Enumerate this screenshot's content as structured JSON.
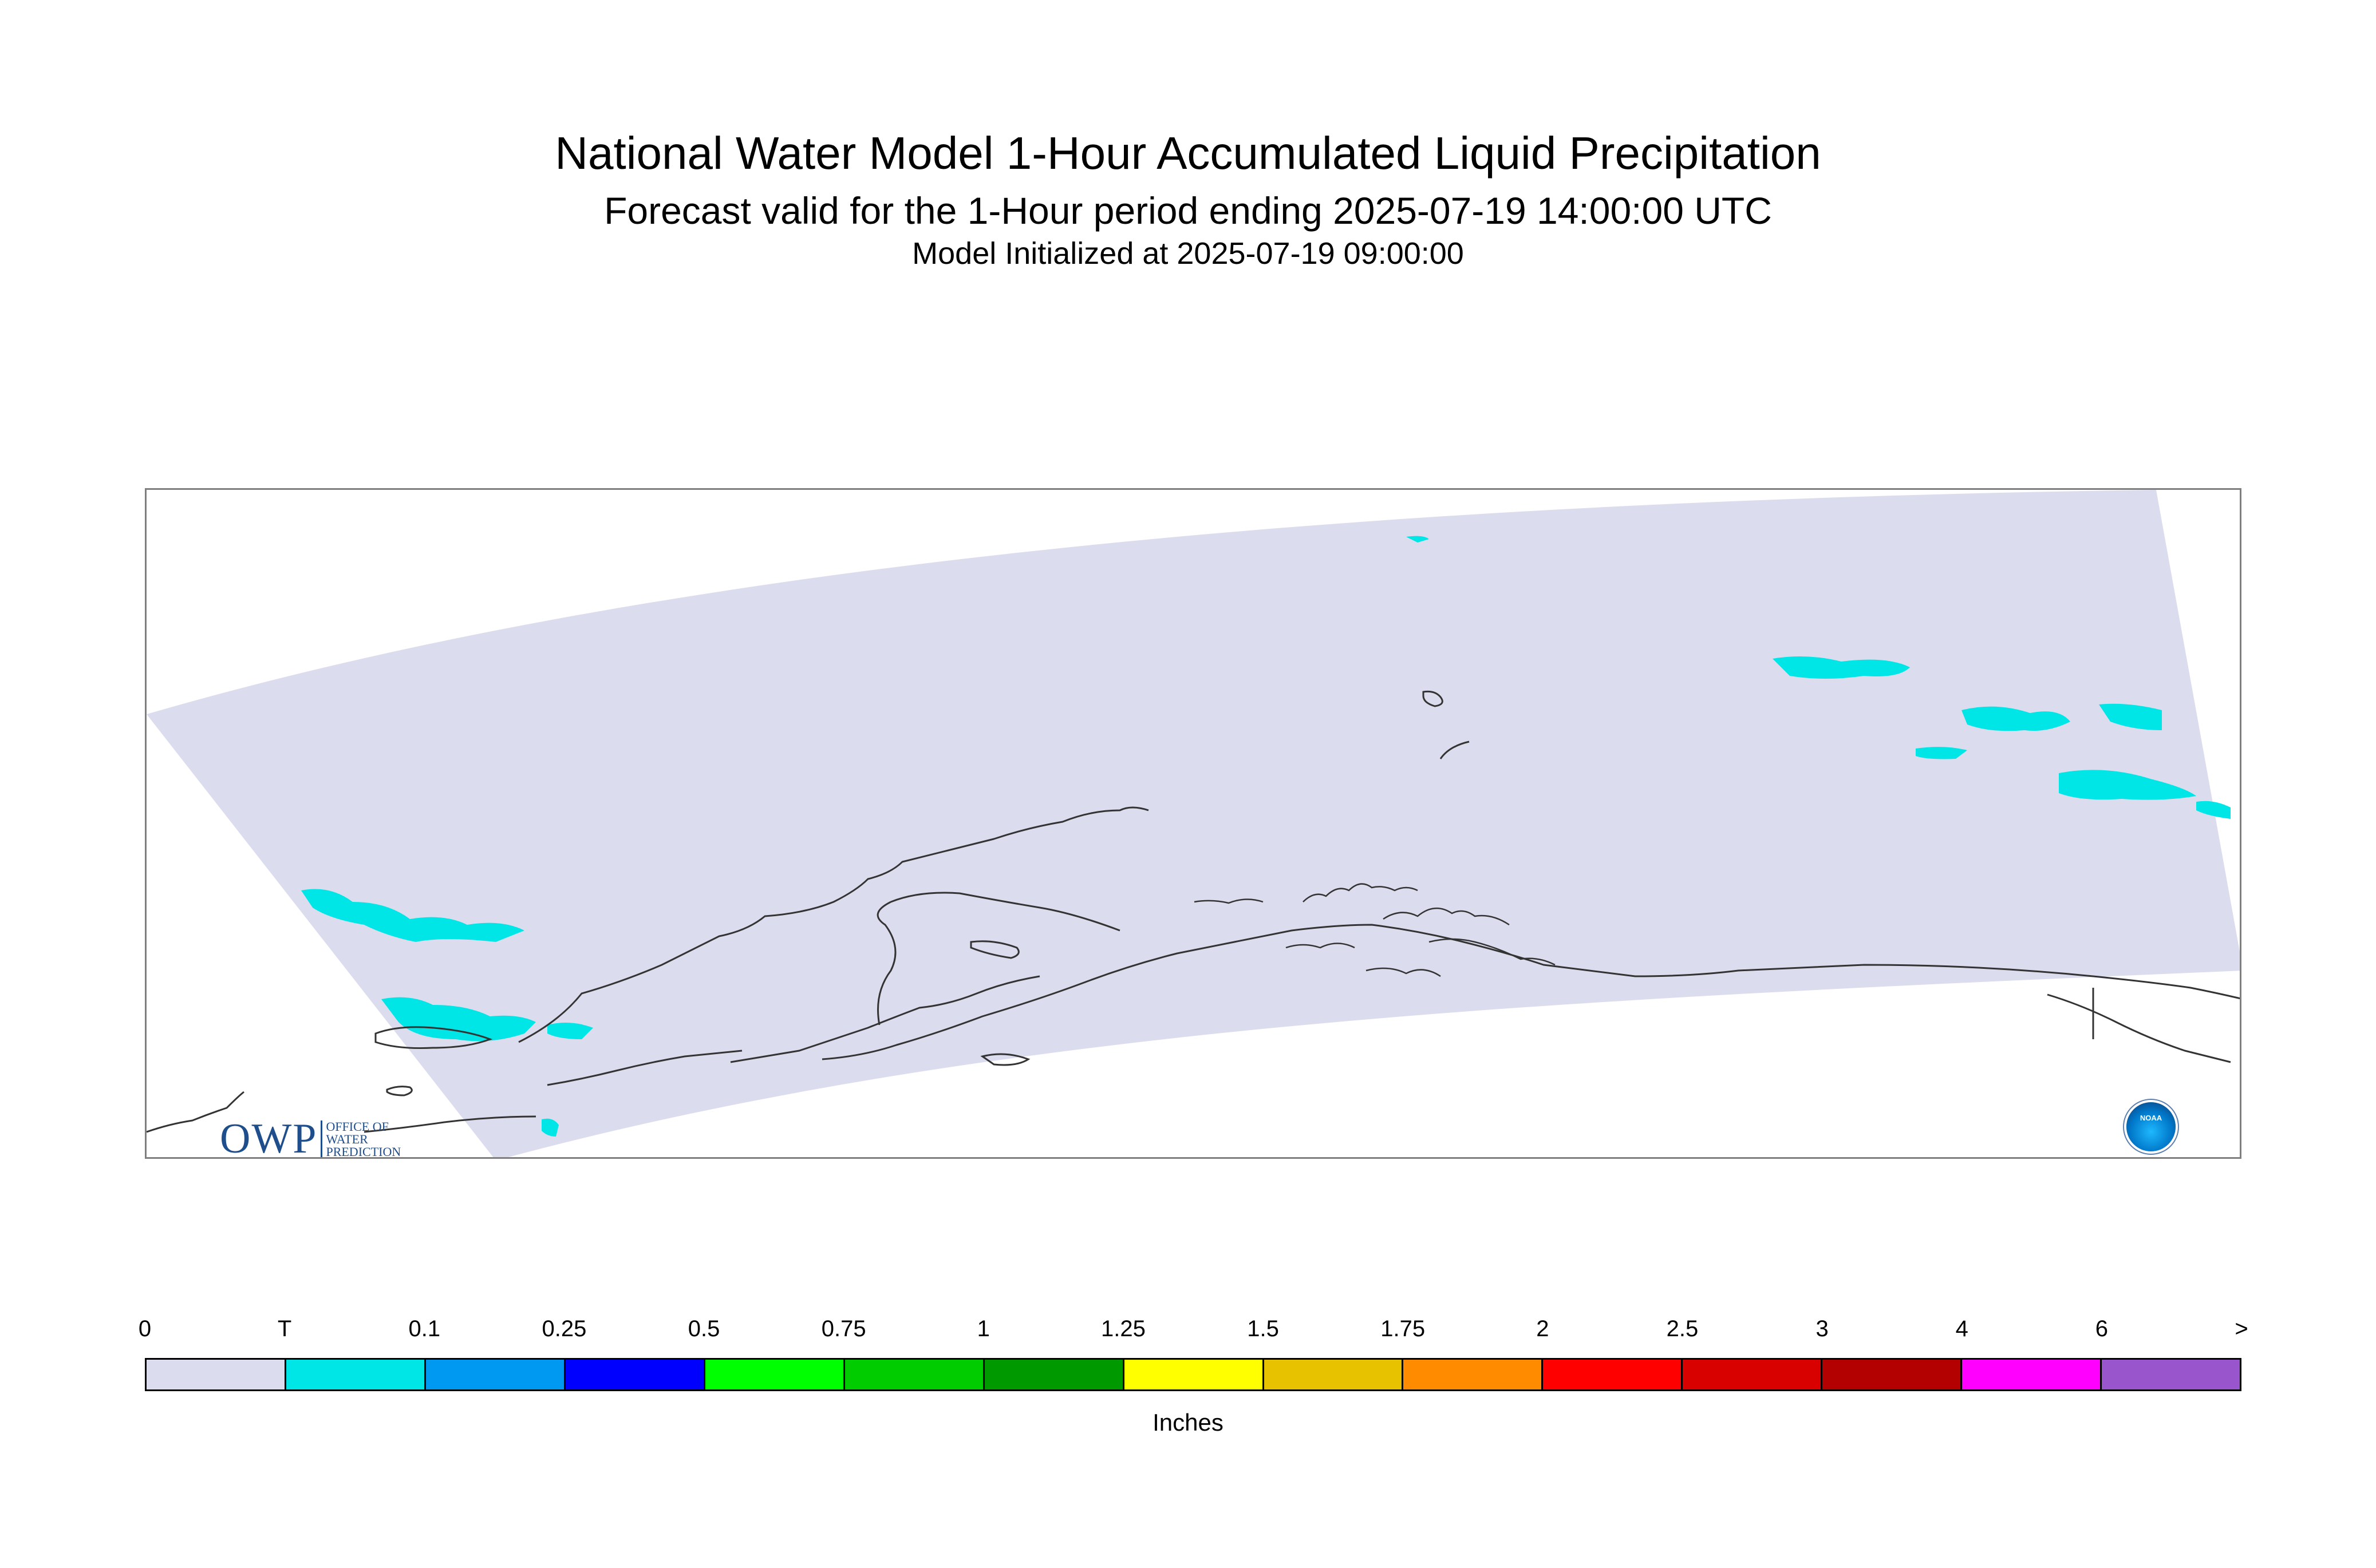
{
  "header": {
    "title": "National Water Model 1-Hour Accumulated Liquid Precipitation",
    "subtitle": "Forecast valid for the 1-Hour period ending 2025-07-19 14:00:00 UTC",
    "init": "Model Initialized at 2025-07-19 09:00:00"
  },
  "logos": {
    "owp_mark": "OWP",
    "owp_text": [
      "OFFICE OF",
      "WATER",
      "PREDICTION"
    ],
    "noaa_text": "NOAA"
  },
  "colors": {
    "domain_fill": "#dcdcef",
    "coastline": "#333333",
    "precip_trace": "#00e5e5"
  },
  "legend": {
    "units": "Inches",
    "ticks": [
      "0",
      "T",
      "0.1",
      "0.25",
      "0.5",
      "0.75",
      "1",
      "1.25",
      "1.5",
      "1.75",
      "2",
      "2.5",
      "3",
      "4",
      "6",
      ">"
    ],
    "colors": [
      "#dcdcef",
      "#00e5e5",
      "#0099f2",
      "#0000ff",
      "#00ff00",
      "#00cc00",
      "#009900",
      "#ffff00",
      "#e6c200",
      "#ff8c00",
      "#ff0000",
      "#d90000",
      "#b30000",
      "#ff00ff",
      "#9955cc"
    ]
  }
}
